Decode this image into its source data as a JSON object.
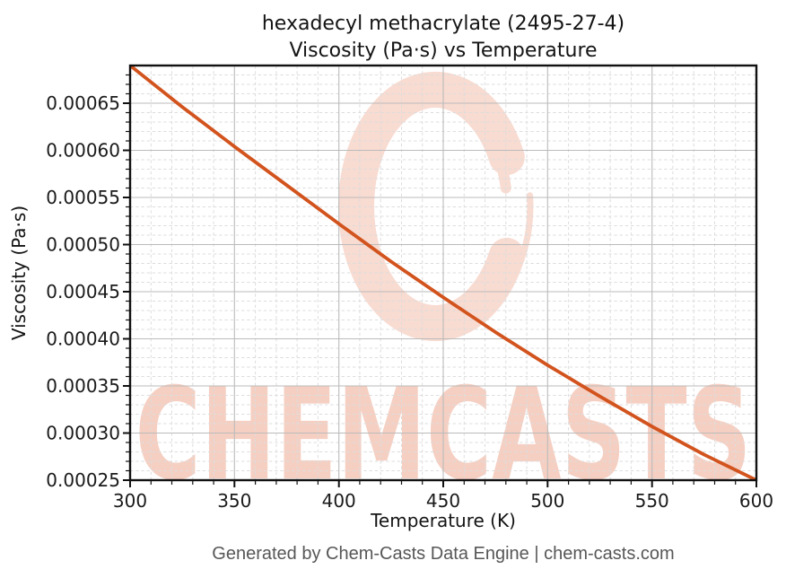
{
  "chart_data": {
    "type": "line",
    "title": "hexadecyl methacrylate (2495-27-4)",
    "subtitle": "Viscosity (Pa·s) vs Temperature",
    "xlabel": "Temperature (K)",
    "ylabel": "Viscosity (Pa·s)",
    "xlim": [
      300,
      600
    ],
    "ylim": [
      0.00025,
      0.00069
    ],
    "xticks": [
      300,
      350,
      400,
      450,
      500,
      550,
      600
    ],
    "xtick_labels": [
      "300",
      "350",
      "400",
      "450",
      "500",
      "550",
      "600"
    ],
    "yticks": [
      0.00025,
      0.0003,
      0.00035,
      0.0004,
      0.00045,
      0.0005,
      0.00055,
      0.0006,
      0.00065
    ],
    "ytick_labels": [
      "0.00025",
      "0.00030",
      "0.00035",
      "0.00040",
      "0.00045",
      "0.00050",
      "0.00055",
      "0.00060",
      "0.00065"
    ],
    "minor_x_step": 10,
    "minor_y_step": 1e-05,
    "grid": "major solid + minor dashed",
    "legend": "none",
    "series": [
      {
        "name": "Viscosity (Pa·s)",
        "color": "#d2531d",
        "x": [
          300,
          325,
          350,
          375,
          400,
          425,
          450,
          475,
          500,
          525,
          550,
          575,
          600
        ],
        "y": [
          0.00069,
          0.000646,
          0.000604,
          0.000563,
          0.000522,
          0.000482,
          0.000444,
          0.000407,
          0.000372,
          0.000339,
          0.000307,
          0.000277,
          0.00025
        ]
      }
    ]
  },
  "watermark": {
    "text": "CHEMCASTS",
    "text_color": "#f5cfc2",
    "ring_color": "#f8dbd1"
  },
  "footer": {
    "text": "Generated by Chem-Casts Data Engine | chem-casts.com"
  },
  "colors": {
    "background": "#ffffff",
    "spine": "#111111",
    "major_grid": "#bbbbbb",
    "minor_grid": "#dddddd",
    "tick_label": "#1a1a1a",
    "curve": "#d2531d"
  }
}
